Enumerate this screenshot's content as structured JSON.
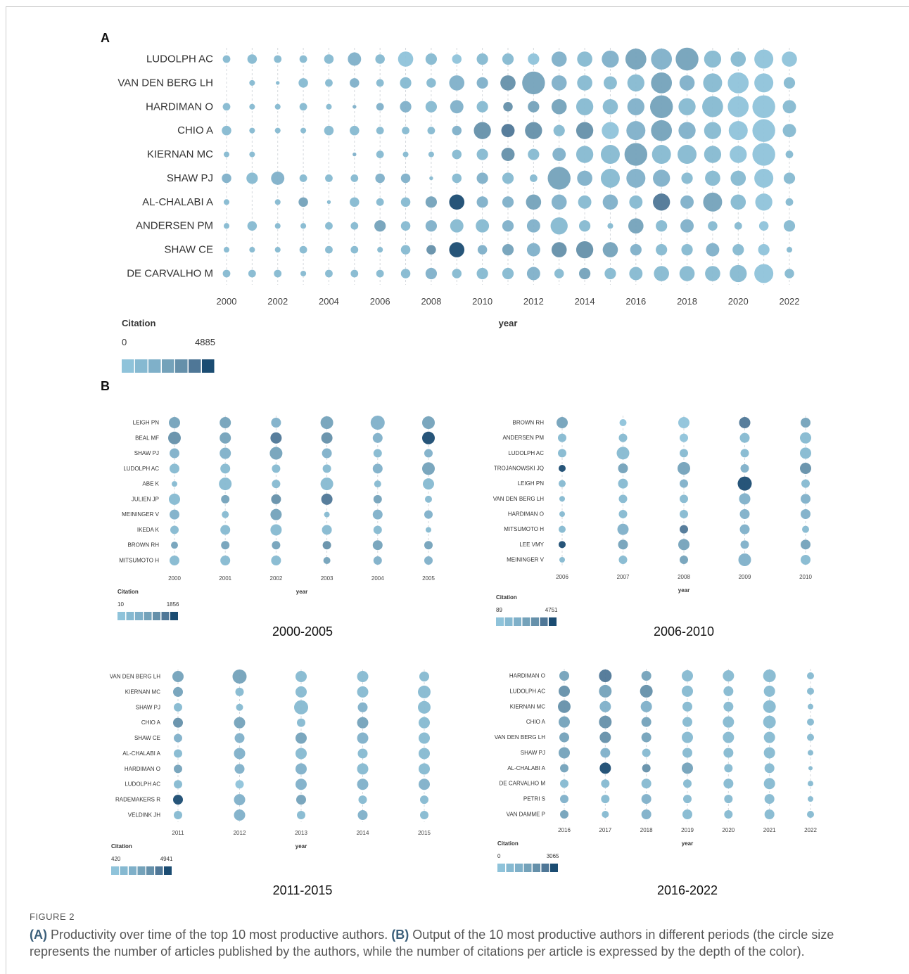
{
  "panel_a_label": "A",
  "panel_b_label": "B",
  "caption": {
    "figure_label": "FIGURE 2",
    "a_marker": "(A)",
    "a_text": " Productivity over time of the top 10 most productive authors. ",
    "b_marker": "(B)",
    "b_text": " Output of the 10 most productive authors in different periods (the circle size represents the number of articles published by the authors, while the number of citations per article is expressed by the depth of the color)."
  },
  "palette": [
    "#8fc3da",
    "#86b9d1",
    "#7fb0c9",
    "#74a2ba",
    "#6590aa",
    "#4f7797",
    "#1b4c72"
  ],
  "chart_data": [
    {
      "id": "A",
      "type": "scatter",
      "title": "",
      "xlabel": "year",
      "ylabel": "",
      "x": [
        "2000",
        "2001",
        "2002",
        "2003",
        "2004",
        "2005",
        "2006",
        "2007",
        "2008",
        "2009",
        "2010",
        "2011",
        "2012",
        "2013",
        "2014",
        "2015",
        "2016",
        "2017",
        "2018",
        "2019",
        "2020",
        "2021",
        "2022"
      ],
      "x_ticks": [
        "2000",
        "2002",
        "2004",
        "2006",
        "2008",
        "2010",
        "2012",
        "2014",
        "2016",
        "2018",
        "2020",
        "2022"
      ],
      "authors": [
        "LUDOLPH AC",
        "VAN DEN BERG LH",
        "HARDIMAN O",
        "CHIO A",
        "KIERNAN MC",
        "SHAW PJ",
        "AL-CHALABI A",
        "ANDERSEN PM",
        "SHAW CE",
        "DE CARVALHO M"
      ],
      "size_legend": "circle size = number of articles",
      "citation_legend": {
        "title": "Citation",
        "min": "0",
        "max": "4885"
      },
      "articles": [
        [
          4,
          5,
          4,
          4,
          5,
          7,
          5,
          8,
          6,
          5,
          6,
          6,
          6,
          8,
          8,
          9,
          11,
          11,
          12,
          9,
          8,
          10,
          8
        ],
        [
          0,
          3,
          2,
          5,
          4,
          5,
          4,
          6,
          5,
          8,
          6,
          8,
          12,
          8,
          8,
          7,
          9,
          11,
          8,
          10,
          11,
          10,
          6
        ],
        [
          4,
          3,
          3,
          4,
          3,
          2,
          4,
          6,
          6,
          7,
          6,
          5,
          6,
          8,
          9,
          8,
          9,
          12,
          9,
          11,
          11,
          12,
          7
        ],
        [
          5,
          3,
          3,
          3,
          5,
          5,
          4,
          4,
          4,
          5,
          9,
          7,
          9,
          6,
          9,
          9,
          10,
          11,
          9,
          9,
          10,
          12,
          7
        ],
        [
          3,
          3,
          0,
          0,
          0,
          2,
          4,
          3,
          3,
          5,
          6,
          7,
          6,
          7,
          9,
          10,
          12,
          10,
          10,
          9,
          9,
          12,
          4
        ],
        [
          5,
          6,
          7,
          4,
          4,
          4,
          5,
          5,
          2,
          5,
          6,
          6,
          4,
          12,
          8,
          10,
          10,
          9,
          6,
          8,
          8,
          10,
          6
        ],
        [
          3,
          0,
          3,
          5,
          2,
          5,
          4,
          5,
          6,
          8,
          6,
          6,
          8,
          8,
          7,
          8,
          7,
          9,
          7,
          10,
          8,
          9,
          4
        ],
        [
          3,
          5,
          3,
          3,
          4,
          4,
          6,
          5,
          6,
          7,
          7,
          6,
          7,
          9,
          6,
          3,
          8,
          6,
          7,
          5,
          4,
          5,
          6
        ],
        [
          3,
          3,
          3,
          4,
          4,
          4,
          3,
          5,
          5,
          8,
          5,
          6,
          7,
          8,
          9,
          8,
          6,
          6,
          6,
          7,
          6,
          6,
          3
        ],
        [
          4,
          4,
          4,
          3,
          4,
          4,
          4,
          5,
          6,
          5,
          6,
          6,
          7,
          5,
          6,
          6,
          7,
          8,
          8,
          8,
          9,
          10,
          5
        ]
      ],
      "citation_level": [
        [
          1,
          1,
          1,
          1,
          1,
          2,
          1,
          0,
          1,
          0,
          1,
          1,
          0,
          2,
          1,
          2,
          3,
          2,
          3,
          1,
          1,
          0,
          0
        ],
        [
          0,
          1,
          1,
          1,
          1,
          2,
          1,
          1,
          1,
          2,
          2,
          4,
          3,
          2,
          1,
          1,
          1,
          3,
          2,
          1,
          0,
          0,
          1
        ],
        [
          1,
          1,
          1,
          1,
          1,
          2,
          2,
          2,
          1,
          2,
          1,
          4,
          3,
          3,
          1,
          1,
          2,
          3,
          1,
          1,
          0,
          0,
          1
        ],
        [
          1,
          1,
          1,
          1,
          1,
          1,
          1,
          1,
          1,
          2,
          4,
          5,
          4,
          1,
          4,
          0,
          2,
          3,
          2,
          1,
          0,
          0,
          1
        ],
        [
          1,
          1,
          0,
          0,
          0,
          2,
          1,
          1,
          1,
          1,
          1,
          4,
          1,
          2,
          1,
          1,
          3,
          1,
          1,
          1,
          0,
          0,
          1
        ],
        [
          2,
          1,
          2,
          1,
          1,
          1,
          2,
          2,
          1,
          1,
          2,
          1,
          1,
          3,
          2,
          1,
          2,
          2,
          1,
          1,
          1,
          0,
          1
        ],
        [
          1,
          0,
          1,
          3,
          1,
          1,
          1,
          1,
          3,
          6,
          2,
          2,
          3,
          2,
          1,
          2,
          1,
          5,
          2,
          3,
          1,
          0,
          1
        ],
        [
          1,
          1,
          1,
          1,
          1,
          1,
          3,
          1,
          2,
          1,
          1,
          2,
          2,
          1,
          1,
          1,
          3,
          1,
          2,
          1,
          1,
          0,
          1
        ],
        [
          1,
          1,
          1,
          1,
          1,
          1,
          1,
          1,
          4,
          6,
          2,
          3,
          2,
          4,
          4,
          3,
          2,
          1,
          1,
          2,
          1,
          0,
          1
        ],
        [
          1,
          1,
          1,
          1,
          1,
          1,
          1,
          1,
          2,
          1,
          1,
          1,
          2,
          1,
          3,
          1,
          1,
          1,
          1,
          1,
          1,
          0,
          1
        ]
      ]
    },
    {
      "id": "B1",
      "type": "scatter",
      "period_label": "2000-2005",
      "title": "",
      "xlabel": "year",
      "x": [
        "2000",
        "2001",
        "2002",
        "2003",
        "2004",
        "2005"
      ],
      "authors": [
        "LEIGH PN",
        "BEAL MF",
        "SHAW PJ",
        "LUDOLPH AC",
        "ABE K",
        "JULIEN JP",
        "MEININGER V",
        "IKEDA K",
        "BROWN RH",
        "MITSUMOTO H"
      ],
      "citation_legend": {
        "title": "Citation",
        "min": "10",
        "max": "1856"
      },
      "articles": [
        [
          8,
          8,
          7,
          9,
          10,
          9
        ],
        [
          9,
          8,
          8,
          8,
          7,
          9
        ],
        [
          7,
          8,
          9,
          7,
          6,
          6
        ],
        [
          7,
          7,
          6,
          6,
          7,
          9
        ],
        [
          4,
          9,
          6,
          9,
          5,
          8
        ],
        [
          8,
          6,
          7,
          8,
          6,
          5
        ],
        [
          7,
          5,
          8,
          4,
          7,
          6
        ],
        [
          6,
          7,
          8,
          7,
          6,
          4
        ],
        [
          5,
          6,
          6,
          6,
          7,
          6
        ],
        [
          7,
          7,
          7,
          5,
          6,
          6
        ]
      ],
      "citation_level": [
        [
          3,
          3,
          2,
          3,
          2,
          3
        ],
        [
          4,
          3,
          5,
          4,
          2,
          6
        ],
        [
          2,
          2,
          3,
          2,
          1,
          2
        ],
        [
          1,
          1,
          1,
          1,
          2,
          3
        ],
        [
          1,
          1,
          1,
          1,
          1,
          1
        ],
        [
          1,
          3,
          4,
          5,
          3,
          1
        ],
        [
          2,
          1,
          3,
          1,
          2,
          2
        ],
        [
          1,
          1,
          1,
          1,
          1,
          1
        ],
        [
          3,
          3,
          3,
          4,
          3,
          3
        ],
        [
          1,
          1,
          1,
          3,
          2,
          2
        ]
      ]
    },
    {
      "id": "B2",
      "type": "scatter",
      "period_label": "2006-2010",
      "title": "",
      "xlabel": "year",
      "x": [
        "2006",
        "2007",
        "2008",
        "2009",
        "2010"
      ],
      "authors": [
        "BROWN RH",
        "ANDERSEN PM",
        "LUDOLPH AC",
        "TROJANOWSKI JQ",
        "LEIGH PN",
        "VAN DEN BERG LH",
        "HARDIMAN O",
        "MITSUMOTO H",
        "LEE VMY",
        "MEININGER V"
      ],
      "citation_legend": {
        "title": "Citation",
        "min": "89",
        "max": "4751"
      },
      "articles": [
        [
          8,
          5,
          8,
          8,
          7
        ],
        [
          6,
          6,
          6,
          7,
          8
        ],
        [
          6,
          9,
          6,
          6,
          8
        ],
        [
          5,
          7,
          9,
          6,
          8
        ],
        [
          5,
          7,
          6,
          10,
          6
        ],
        [
          4,
          6,
          6,
          8,
          7
        ],
        [
          4,
          6,
          6,
          7,
          7
        ],
        [
          5,
          8,
          6,
          7,
          5
        ],
        [
          5,
          7,
          8,
          6,
          7
        ],
        [
          4,
          6,
          6,
          9,
          7
        ]
      ],
      "citation_level": [
        [
          3,
          0,
          0,
          5,
          3
        ],
        [
          1,
          1,
          0,
          1,
          1
        ],
        [
          1,
          1,
          1,
          1,
          1
        ],
        [
          6,
          3,
          3,
          2,
          4
        ],
        [
          1,
          1,
          2,
          6,
          1
        ],
        [
          1,
          1,
          1,
          2,
          2
        ],
        [
          1,
          1,
          1,
          2,
          2
        ],
        [
          1,
          2,
          5,
          2,
          1
        ],
        [
          6,
          3,
          3,
          2,
          3
        ],
        [
          1,
          1,
          3,
          2,
          1
        ]
      ]
    },
    {
      "id": "B3",
      "type": "scatter",
      "period_label": "2011-2015",
      "title": "",
      "xlabel": "year",
      "x": [
        "2011",
        "2012",
        "2013",
        "2014",
        "2015"
      ],
      "authors": [
        "VAN DEN BERG LH",
        "KIERNAN MC",
        "SHAW PJ",
        "CHIO A",
        "SHAW CE",
        "AL-CHALABI A",
        "HARDIMAN O",
        "LUDOLPH AC",
        "RADEMAKERS R",
        "VELDINK JH"
      ],
      "citation_legend": {
        "title": "Citation",
        "min": "420",
        "max": "4941"
      },
      "articles": [
        [
          8,
          10,
          8,
          8,
          7
        ],
        [
          7,
          6,
          8,
          8,
          9
        ],
        [
          6,
          5,
          10,
          7,
          9
        ],
        [
          7,
          8,
          6,
          8,
          8
        ],
        [
          6,
          7,
          8,
          8,
          8
        ],
        [
          6,
          8,
          8,
          7,
          8
        ],
        [
          6,
          7,
          8,
          8,
          8
        ],
        [
          6,
          6,
          8,
          8,
          8
        ],
        [
          7,
          8,
          7,
          6,
          6
        ],
        [
          6,
          8,
          6,
          7,
          6
        ]
      ],
      "citation_level": [
        [
          3,
          3,
          1,
          1,
          1
        ],
        [
          3,
          1,
          1,
          1,
          1
        ],
        [
          1,
          1,
          1,
          2,
          1
        ],
        [
          4,
          3,
          1,
          3,
          1
        ],
        [
          2,
          2,
          3,
          2,
          1
        ],
        [
          1,
          2,
          1,
          1,
          1
        ],
        [
          3,
          2,
          2,
          1,
          1
        ],
        [
          1,
          0,
          2,
          2,
          2
        ],
        [
          6,
          2,
          3,
          1,
          1
        ],
        [
          1,
          2,
          1,
          2,
          1
        ]
      ]
    },
    {
      "id": "B4",
      "type": "scatter",
      "period_label": "2016-2022",
      "title": "",
      "xlabel": "year",
      "x": [
        "2016",
        "2017",
        "2018",
        "2019",
        "2020",
        "2021",
        "2022"
      ],
      "authors": [
        "HARDIMAN O",
        "LUDOLPH AC",
        "KIERNAN MC",
        "CHIO A",
        "VAN DEN BERG LH",
        "SHAW PJ",
        "AL-CHALABI A",
        "DE CARVALHO M",
        "PETRI S",
        "VAN DAMME P"
      ],
      "citation_legend": {
        "title": "Citation",
        "min": "0",
        "max": "3065"
      },
      "articles": [
        [
          7,
          9,
          7,
          8,
          8,
          9,
          5
        ],
        [
          8,
          9,
          9,
          8,
          7,
          8,
          5
        ],
        [
          9,
          8,
          8,
          7,
          7,
          9,
          4
        ],
        [
          8,
          9,
          7,
          7,
          8,
          9,
          5
        ],
        [
          7,
          8,
          7,
          8,
          8,
          8,
          5
        ],
        [
          8,
          7,
          6,
          7,
          7,
          8,
          4
        ],
        [
          6,
          8,
          6,
          8,
          6,
          7,
          3
        ],
        [
          6,
          6,
          7,
          6,
          7,
          8,
          4
        ],
        [
          6,
          6,
          7,
          6,
          6,
          7,
          4
        ],
        [
          6,
          5,
          7,
          7,
          6,
          7,
          5
        ]
      ],
      "citation_level": [
        [
          3,
          5,
          3,
          1,
          1,
          1,
          1
        ],
        [
          4,
          3,
          4,
          1,
          1,
          1,
          1
        ],
        [
          4,
          2,
          2,
          1,
          1,
          1,
          1
        ],
        [
          3,
          4,
          3,
          1,
          1,
          1,
          1
        ],
        [
          3,
          4,
          3,
          1,
          1,
          1,
          1
        ],
        [
          3,
          2,
          1,
          1,
          1,
          1,
          1
        ],
        [
          3,
          6,
          4,
          3,
          1,
          1,
          1
        ],
        [
          1,
          1,
          1,
          1,
          1,
          1,
          1
        ],
        [
          2,
          1,
          2,
          1,
          1,
          1,
          1
        ],
        [
          3,
          1,
          2,
          1,
          1,
          1,
          1
        ]
      ]
    }
  ]
}
